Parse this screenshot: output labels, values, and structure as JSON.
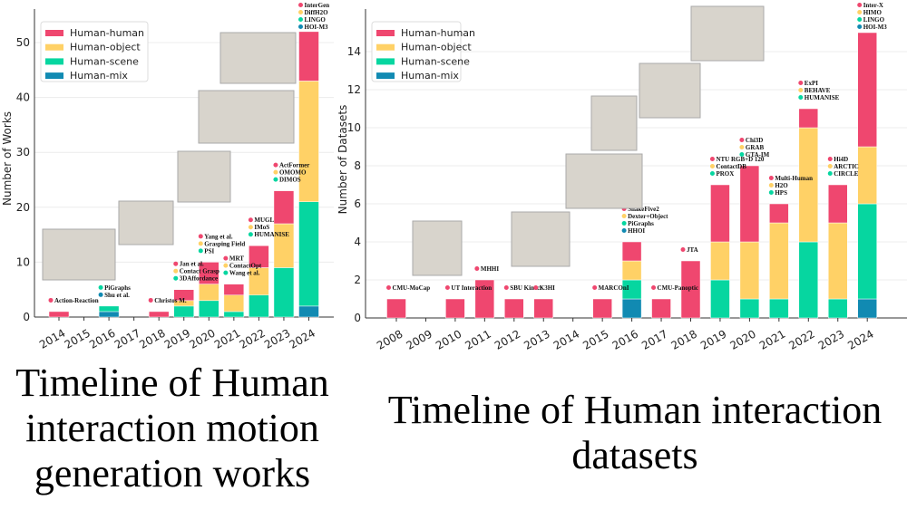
{
  "colors": {
    "Human-human": "#ef476f",
    "Human-object": "#ffd166",
    "Human-scene": "#06d6a0",
    "Human-mix": "#118ab2"
  },
  "chart_data": [
    {
      "type": "bar",
      "stacked": true,
      "title": "Timeline of Human interaction motion generation works",
      "xlabel": "",
      "ylabel": "Number of Works",
      "ylim": [
        0,
        55
      ],
      "yticks": [
        0,
        10,
        20,
        30,
        40,
        50
      ],
      "legend": [
        "Human-human",
        "Human-object",
        "Human-scene",
        "Human-mix"
      ],
      "legend_position": "top-left",
      "categories": [
        "2014",
        "2015",
        "2016",
        "2017",
        "2018",
        "2019",
        "2020",
        "2021",
        "2022",
        "2023",
        "2024"
      ],
      "series": [
        {
          "name": "Human-mix",
          "values": [
            0,
            0,
            1,
            0,
            0,
            0,
            0,
            0,
            0,
            0,
            2
          ]
        },
        {
          "name": "Human-scene",
          "values": [
            0,
            0,
            1,
            0,
            0,
            2,
            3,
            1,
            4,
            9,
            19
          ]
        },
        {
          "name": "Human-object",
          "values": [
            0,
            0,
            0,
            0,
            0,
            1,
            3,
            3,
            5,
            8,
            22
          ]
        },
        {
          "name": "Human-human",
          "values": [
            1,
            0,
            0,
            0,
            1,
            2,
            4,
            2,
            4,
            6,
            9
          ]
        }
      ],
      "annotations": [
        {
          "year": "2014",
          "items": [
            [
              "Action-Reaction",
              "Human-human"
            ]
          ]
        },
        {
          "year": "2016",
          "items": [
            [
              "PiGraphs",
              "Human-scene"
            ],
            [
              "Shu et al.",
              "Human-mix"
            ]
          ]
        },
        {
          "year": "2018",
          "items": [
            [
              "Christos M.",
              "Human-human"
            ]
          ]
        },
        {
          "year": "2019",
          "items": [
            [
              "Jan et al.",
              "Human-human"
            ],
            [
              "Contact Grasp",
              "Human-object"
            ],
            [
              "3DAffordance",
              "Human-scene"
            ]
          ]
        },
        {
          "year": "2020",
          "items": [
            [
              "Yang et al.",
              "Human-human"
            ],
            [
              "Grasping Field",
              "Human-object"
            ],
            [
              "PSI",
              "Human-scene"
            ]
          ]
        },
        {
          "year": "2021",
          "items": [
            [
              "MRT",
              "Human-human"
            ],
            [
              "ContactOpt",
              "Human-object"
            ],
            [
              "Wang et al.",
              "Human-scene"
            ]
          ]
        },
        {
          "year": "2022",
          "items": [
            [
              "MUGL",
              "Human-human"
            ],
            [
              "IMoS",
              "Human-object"
            ],
            [
              "HUMANISE",
              "Human-scene"
            ]
          ]
        },
        {
          "year": "2023",
          "items": [
            [
              "ActFormer",
              "Human-human"
            ],
            [
              "OMOMO",
              "Human-object"
            ],
            [
              "DIMOS",
              "Human-scene"
            ]
          ]
        },
        {
          "year": "2024",
          "items": [
            [
              "InterGen",
              "Human-human"
            ],
            [
              "DiffH2O",
              "Human-object"
            ],
            [
              "LINGO",
              "Human-scene"
            ],
            [
              "HOI-M3",
              "Human-mix"
            ]
          ]
        }
      ]
    },
    {
      "type": "bar",
      "stacked": true,
      "title": "Timeline of Human interaction datasets",
      "xlabel": "",
      "ylabel": "Number of Datasets",
      "ylim": [
        0,
        15.5
      ],
      "yticks": [
        0,
        2,
        4,
        6,
        8,
        10,
        12,
        14
      ],
      "legend": [
        "Human-human",
        "Human-object",
        "Human-scene",
        "Human-mix"
      ],
      "legend_position": "top-left",
      "categories": [
        "2008",
        "2009",
        "2010",
        "2011",
        "2012",
        "2013",
        "2014",
        "2015",
        "2016",
        "2017",
        "2018",
        "2019",
        "2020",
        "2021",
        "2022",
        "2023",
        "2024"
      ],
      "series": [
        {
          "name": "Human-mix",
          "values": [
            0,
            0,
            0,
            0,
            0,
            0,
            0,
            0,
            1,
            0,
            0,
            0,
            0,
            0,
            0,
            0,
            1
          ]
        },
        {
          "name": "Human-scene",
          "values": [
            0,
            0,
            0,
            0,
            0,
            0,
            0,
            0,
            1,
            0,
            0,
            2,
            1,
            1,
            4,
            1,
            5
          ]
        },
        {
          "name": "Human-object",
          "values": [
            0,
            0,
            0,
            0,
            0,
            0,
            0,
            0,
            1,
            0,
            0,
            2,
            3,
            4,
            6,
            4,
            3
          ]
        },
        {
          "name": "Human-human",
          "values": [
            1,
            0,
            1,
            2,
            1,
            1,
            0,
            1,
            1,
            1,
            3,
            3,
            4,
            1,
            1,
            2,
            6
          ]
        }
      ],
      "annotations": [
        {
          "year": "2008",
          "items": [
            [
              "CMU-MoCap",
              "Human-human"
            ]
          ]
        },
        {
          "year": "2010",
          "items": [
            [
              "UT Interaction",
              "Human-human"
            ]
          ]
        },
        {
          "year": "2011",
          "items": [
            [
              "MHHI",
              "Human-human"
            ]
          ]
        },
        {
          "year": "2012",
          "items": [
            [
              "SBU Kinect",
              "Human-human"
            ]
          ]
        },
        {
          "year": "2013",
          "items": [
            [
              "K3HI",
              "Human-human"
            ]
          ]
        },
        {
          "year": "2015",
          "items": [
            [
              "MARCOnI",
              "Human-human"
            ]
          ]
        },
        {
          "year": "2016",
          "items": [
            [
              "ShakeFive2",
              "Human-human"
            ],
            [
              "Dexter+Object",
              "Human-object"
            ],
            [
              "PiGraphs",
              "Human-scene"
            ],
            [
              "HHOI",
              "Human-mix"
            ]
          ]
        },
        {
          "year": "2017",
          "items": [
            [
              "CMU-Panoptic",
              "Human-human"
            ]
          ]
        },
        {
          "year": "2018",
          "items": [
            [
              "JTA",
              "Human-human"
            ]
          ]
        },
        {
          "year": "2019",
          "items": [
            [
              "NTU RGB+D 120",
              "Human-human"
            ],
            [
              "ContactDB",
              "Human-object"
            ],
            [
              "PROX",
              "Human-scene"
            ]
          ]
        },
        {
          "year": "2020",
          "items": [
            [
              "Chi3D",
              "Human-human"
            ],
            [
              "GRAB",
              "Human-object"
            ],
            [
              "GTA-IM",
              "Human-scene"
            ]
          ]
        },
        {
          "year": "2021",
          "items": [
            [
              "Multi-Human",
              "Human-human"
            ],
            [
              "H2O",
              "Human-object"
            ],
            [
              "HPS",
              "Human-scene"
            ]
          ]
        },
        {
          "year": "2022",
          "items": [
            [
              "ExPI",
              "Human-human"
            ],
            [
              "BEHAVE",
              "Human-object"
            ],
            [
              "HUMANISE",
              "Human-scene"
            ]
          ]
        },
        {
          "year": "2023",
          "items": [
            [
              "Hi4D",
              "Human-human"
            ],
            [
              "ARCTIC",
              "Human-object"
            ],
            [
              "CIRCLE",
              "Human-scene"
            ]
          ]
        },
        {
          "year": "2024",
          "items": [
            [
              "Inter-X",
              "Human-human"
            ],
            [
              "HIMO",
              "Human-object"
            ],
            [
              "LINGO",
              "Human-scene"
            ],
            [
              "HOI-M3",
              "Human-mix"
            ]
          ]
        }
      ]
    }
  ]
}
